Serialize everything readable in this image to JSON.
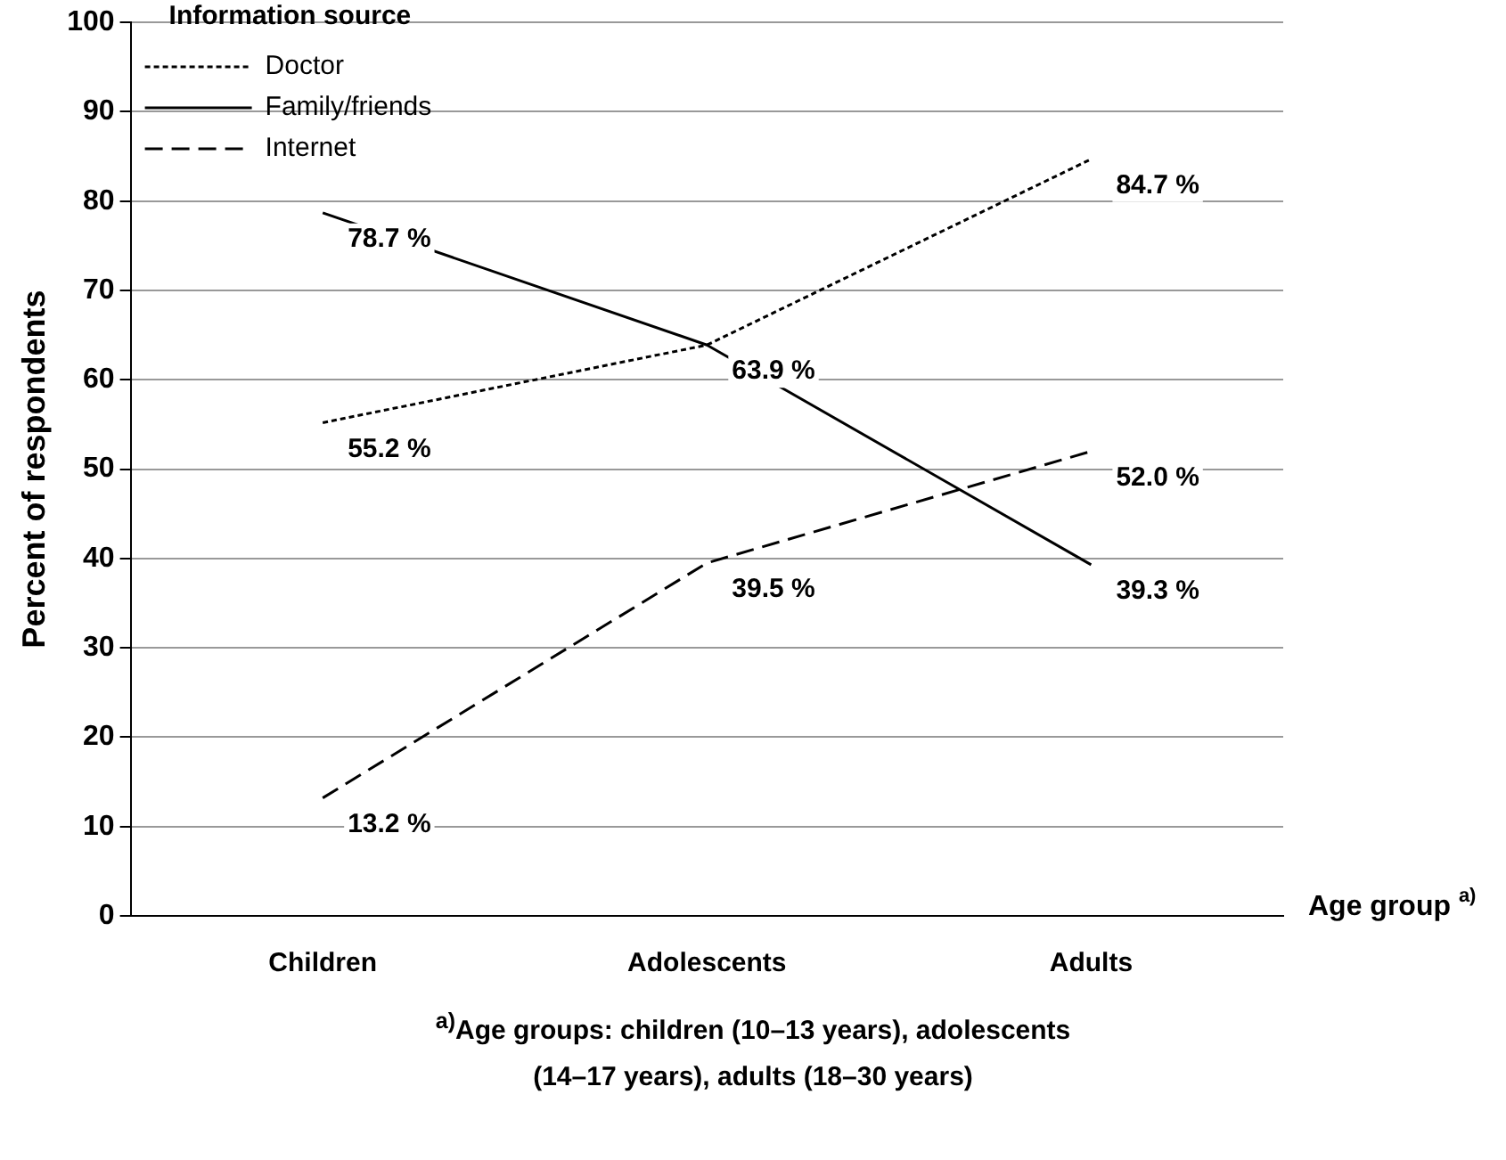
{
  "chart_data": {
    "type": "line",
    "ylabel": "Percent of respondents",
    "xlabel": "Age group $^{a)}$",
    "legend_title": "Information source",
    "legend": "top left",
    "grid": "y",
    "marker": "none",
    "categories": [
      "Children",
      "Adolescents",
      "Adults"
    ],
    "ylim": [
      0,
      100
    ],
    "yticks": [
      0,
      10,
      20,
      30,
      40,
      50,
      60,
      70,
      80,
      90,
      100
    ],
    "series": [
      {
        "name": "Doctor",
        "color": "#000000",
        "line_style": "dotted",
        "values": [
          55.2,
          63.9,
          84.7
        ],
        "value_labels": [
          "55.2 %",
          null,
          "84.7 %"
        ]
      },
      {
        "name": "Family/friends",
        "color": "#000000",
        "line_style": "solid",
        "values": [
          78.7,
          63.9,
          39.3
        ],
        "value_labels": [
          "78.7 %",
          "63.9 %",
          "39.3 %"
        ]
      },
      {
        "name": "Internet",
        "color": "#000000",
        "line_style": "dashed",
        "values": [
          13.2,
          39.5,
          52.0
        ],
        "value_labels": [
          "13.2 %",
          "39.5 %",
          "52.0 %"
        ]
      }
    ],
    "annotations": [
      "$^{a)}$Age groups: children (10–13 years), adolescents (14–17 years), adults (18–30 years)"
    ]
  }
}
